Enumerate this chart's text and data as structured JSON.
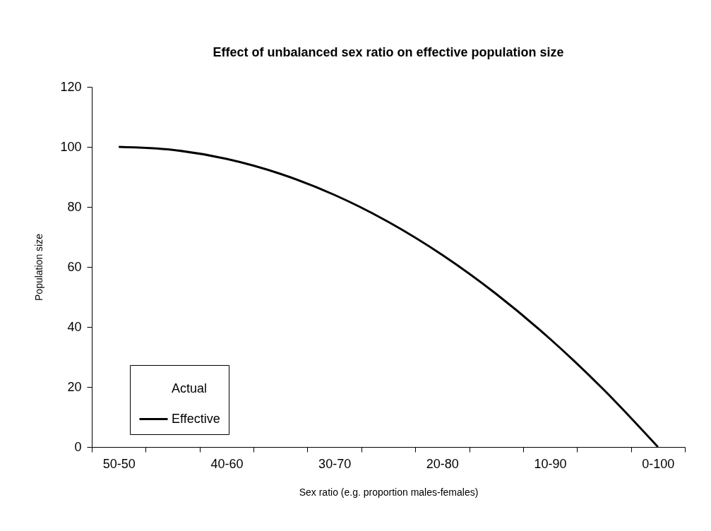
{
  "chart_data": {
    "type": "line",
    "title": "Effect of unbalanced sex ratio on effective population size",
    "xlabel": "Sex ratio (e.g. proportion males-females)",
    "ylabel": "Population size",
    "categories": [
      "50-50",
      null,
      "40-60",
      null,
      "30-70",
      null,
      "20-80",
      null,
      "10-90",
      null,
      "0-100"
    ],
    "series": [
      {
        "name": "Actual",
        "values": [
          null,
          null,
          null,
          null,
          null,
          null,
          null,
          null,
          null,
          null,
          null
        ]
      },
      {
        "name": "Effective",
        "color": "#000000",
        "values": [
          100,
          99,
          96,
          91,
          84,
          75,
          64,
          51,
          36,
          19,
          0
        ]
      }
    ],
    "ylim": [
      0,
      120
    ],
    "yticks": [
      0,
      20,
      40,
      60,
      80,
      100,
      120
    ],
    "legend": "bottom left",
    "line_style": "solid"
  }
}
